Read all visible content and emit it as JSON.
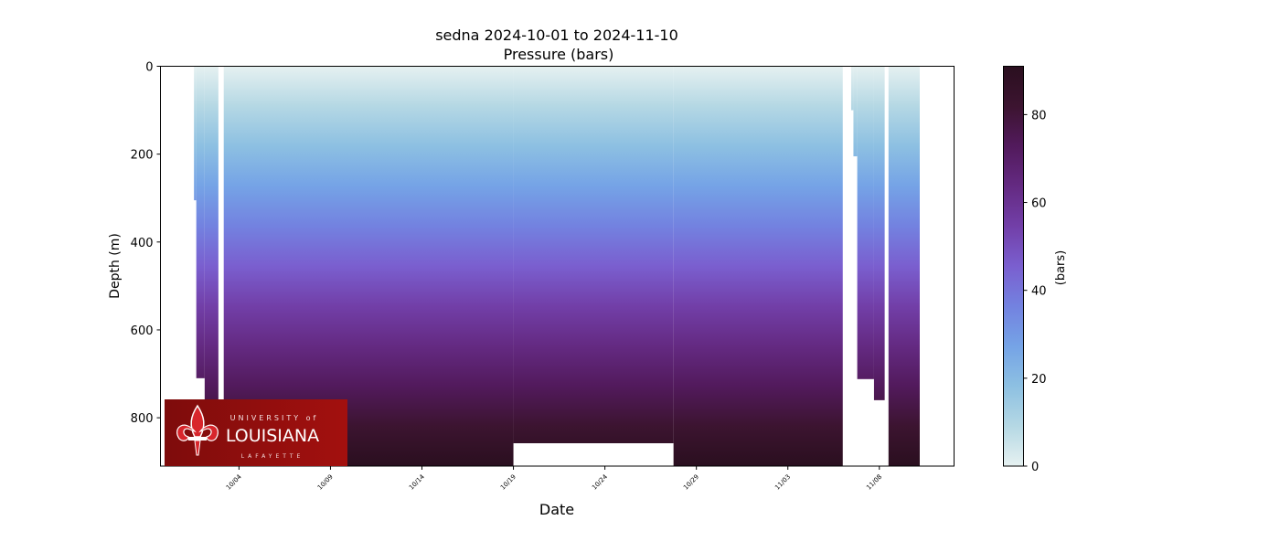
{
  "chart_data": {
    "type": "heatmap",
    "title": "sedna 2024-10-01 to 2024-11-10",
    "subtitle": "Pressure (bars)",
    "xlabel": "Date",
    "ylabel": "Depth (m)",
    "xlim": [
      "2024-09-29T17:00",
      "2024-11-12T02:00"
    ],
    "ylim": [
      910,
      0
    ],
    "y_inverted": true,
    "x_ticks": [
      "10/04",
      "10/09",
      "10/14",
      "10/19",
      "10/24",
      "10/29",
      "11/03",
      "11/08"
    ],
    "x_tick_dates": [
      "2024-10-04",
      "2024-10-09",
      "2024-10-14",
      "2024-10-19",
      "2024-10-24",
      "2024-10-29",
      "2024-11-03",
      "2024-11-08"
    ],
    "y_ticks": [
      0,
      200,
      400,
      600,
      800
    ],
    "grid": false,
    "colorbar": {
      "label": "(bars)",
      "range": [
        0,
        91
      ],
      "ticks": [
        0,
        20,
        40,
        60,
        80
      ],
      "colormap": [
        "#e6f1f1",
        "#b5d8e4",
        "#8dc0e2",
        "#75a3e6",
        "#7382e0",
        "#7a5fcf",
        "#723fa8",
        "#642a82",
        "#521a5c",
        "#3c1430",
        "#2a0f1f"
      ]
    },
    "profile_segments": [
      {
        "start": "2024-10-01T13:00",
        "end": "2024-10-01T16:00",
        "max_depth": 305
      },
      {
        "start": "2024-10-01T16:00",
        "end": "2024-10-02T03:00",
        "max_depth": 710
      },
      {
        "start": "2024-10-02T03:00",
        "end": "2024-10-02T21:00",
        "max_depth": 910
      },
      {
        "start": "2024-10-03T04:00",
        "end": "2024-10-19T00:00",
        "max_depth": 910
      },
      {
        "start": "2024-10-19T00:00",
        "end": "2024-10-27T18:00",
        "max_depth": 858
      },
      {
        "start": "2024-10-27T18:00",
        "end": "2024-11-06T00:00",
        "max_depth": 910
      },
      {
        "start": "2024-11-06T11:00",
        "end": "2024-11-06T14:00",
        "max_depth": 100
      },
      {
        "start": "2024-11-06T14:00",
        "end": "2024-11-06T19:00",
        "max_depth": 205
      },
      {
        "start": "2024-11-06T19:00",
        "end": "2024-11-07T17:00",
        "max_depth": 712
      },
      {
        "start": "2024-11-07T17:00",
        "end": "2024-11-08T07:00",
        "max_depth": 760
      },
      {
        "start": "2024-11-08T12:00",
        "end": "2024-11-10T05:00",
        "max_depth": 910
      }
    ]
  },
  "logo": {
    "line1": "UNIVERSITY of",
    "line2": "LOUISIANA",
    "line3": "LAFAYETTE"
  }
}
